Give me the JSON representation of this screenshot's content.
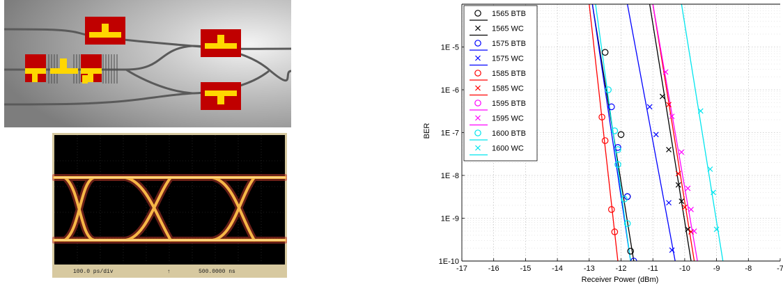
{
  "eye_diagram": {
    "time_scale": "100.0 ps/div",
    "marker": "↑",
    "time_offset": "500.0000 ns"
  },
  "chart_data": {
    "type": "scatter",
    "title": "",
    "xlabel": "Receiver Power (dBm)",
    "ylabel": "BER",
    "xlim": [
      -17,
      -7
    ],
    "ylim": [
      1e-10,
      0.0001
    ],
    "y_scale": "log",
    "x_ticks": [
      "-17",
      "-16",
      "-15",
      "-14",
      "-13",
      "-12",
      "-11",
      "-10",
      "-9",
      "-8",
      "-7"
    ],
    "y_ticks": [
      {
        "v": 1e-05,
        "label": "1E -5"
      },
      {
        "v": 1e-06,
        "label": "1E -6"
      },
      {
        "v": 1e-07,
        "label": "1E -7"
      },
      {
        "v": 1e-08,
        "label": "1E -8"
      },
      {
        "v": 1e-09,
        "label": "1E -9"
      },
      {
        "v": 1e-10,
        "label": "1E-10"
      }
    ],
    "grid": true,
    "legend_position": "top-left",
    "series": [
      {
        "name": "1565 BTB",
        "color": "#000000",
        "marker": "circle",
        "points": [
          [
            -12.5,
            7.5e-06
          ],
          [
            -12.0,
            9e-08
          ],
          [
            -11.8,
            3.2e-09
          ],
          [
            -11.7,
            1.7e-10
          ]
        ],
        "fit": [
          [
            -12.9,
            0.0001
          ],
          [
            -11.6,
            1e-10
          ]
        ]
      },
      {
        "name": "1565 WC",
        "color": "#000000",
        "marker": "x",
        "points": [
          [
            -10.7,
            7e-07
          ],
          [
            -10.5,
            4e-08
          ],
          [
            -10.2,
            6e-09
          ],
          [
            -10.1,
            2.5e-09
          ],
          [
            -9.9,
            5.5e-10
          ]
        ],
        "fit": [
          [
            -11.1,
            0.0001
          ],
          [
            -9.8,
            1e-10
          ]
        ]
      },
      {
        "name": "1575 BTB",
        "color": "#0000ff",
        "marker": "circle",
        "points": [
          [
            -12.3,
            4e-07
          ],
          [
            -12.1,
            4.5e-08
          ],
          [
            -11.8,
            3.2e-09
          ],
          [
            -11.6,
            1e-10
          ]
        ],
        "fit": [
          [
            -12.9,
            0.0001
          ],
          [
            -11.7,
            1e-10
          ]
        ]
      },
      {
        "name": "1575 WC",
        "color": "#0000ff",
        "marker": "x",
        "points": [
          [
            -11.1,
            4e-07
          ],
          [
            -10.9,
            9e-08
          ],
          [
            -10.5,
            2.3e-09
          ],
          [
            -10.4,
            1.8e-10
          ]
        ],
        "fit": [
          [
            -11.8,
            0.0001
          ],
          [
            -10.3,
            1e-10
          ]
        ]
      },
      {
        "name": "1585 BTB",
        "color": "#ff0000",
        "marker": "circle",
        "points": [
          [
            -12.6,
            2.3e-07
          ],
          [
            -12.5,
            6.5e-08
          ],
          [
            -12.3,
            1.6e-09
          ],
          [
            -12.2,
            4.8e-10
          ]
        ],
        "fit": [
          [
            -13.0,
            0.0001
          ],
          [
            -12.1,
            1e-10
          ]
        ]
      },
      {
        "name": "1585 WC",
        "color": "#ff0000",
        "marker": "x",
        "points": [
          [
            -10.5,
            4.5e-07
          ],
          [
            -10.2,
            1.1e-08
          ],
          [
            -10.0,
            1.8e-09
          ],
          [
            -9.8,
            4.8e-10
          ]
        ],
        "fit": [
          [
            -11.0,
            0.0001
          ],
          [
            -9.7,
            1e-10
          ]
        ]
      },
      {
        "name": "1595 BTB",
        "color": "#ff00ff",
        "marker": "circle",
        "points": [],
        "fit": []
      },
      {
        "name": "1595 WC",
        "color": "#ff00ff",
        "marker": "x",
        "points": [
          [
            -10.6,
            2.6e-06
          ],
          [
            -10.4,
            2.4e-07
          ],
          [
            -10.1,
            3.5e-08
          ],
          [
            -9.9,
            5e-09
          ],
          [
            -9.8,
            1.6e-09
          ],
          [
            -9.7,
            5e-10
          ]
        ],
        "fit": [
          [
            -11.0,
            0.0001
          ],
          [
            -9.6,
            1e-10
          ]
        ]
      },
      {
        "name": "1600 BTB",
        "color": "#00e5ee",
        "marker": "circle",
        "points": [
          [
            -12.4,
            1e-06
          ],
          [
            -12.2,
            1.1e-07
          ],
          [
            -12.1,
            4e-08
          ],
          [
            -12.1,
            1.8e-08
          ],
          [
            -11.9,
            2.8e-09
          ],
          [
            -11.8,
            7.5e-10
          ]
        ],
        "fit": [
          [
            -12.8,
            0.0001
          ],
          [
            -11.7,
            1e-10
          ]
        ]
      },
      {
        "name": "1600 WC",
        "color": "#00e5ee",
        "marker": "x",
        "points": [
          [
            -9.5,
            3.2e-07
          ],
          [
            -9.2,
            1.4e-08
          ],
          [
            -9.1,
            4e-09
          ],
          [
            -9.0,
            5.5e-10
          ]
        ],
        "fit": [
          [
            -10.1,
            0.0001
          ],
          [
            -8.8,
            1e-10
          ]
        ]
      }
    ]
  }
}
